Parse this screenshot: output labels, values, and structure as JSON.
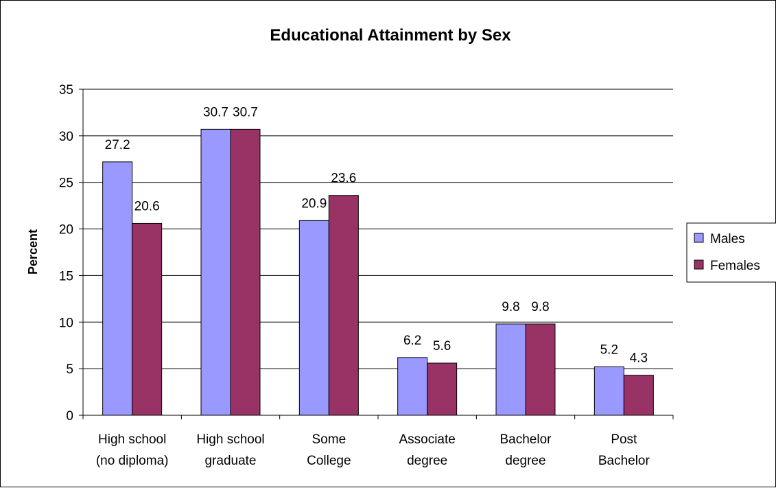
{
  "chart_data": {
    "type": "bar",
    "title": "Educational Attainment by Sex",
    "xlabel": "",
    "ylabel": "Percent",
    "ylim": [
      0,
      35
    ],
    "yticks": [
      "0",
      "5",
      "10",
      "15",
      "20",
      "25",
      "30",
      "35"
    ],
    "grid": true,
    "legend_position": "right",
    "categories": [
      [
        "High school",
        "(no diploma)"
      ],
      [
        "High school",
        "graduate"
      ],
      [
        "Some",
        "College"
      ],
      [
        "Associate",
        "degree"
      ],
      [
        "Bachelor",
        "degree"
      ],
      [
        "Post",
        "Bachelor"
      ]
    ],
    "series": [
      {
        "name": "Males",
        "color": "#9999ff",
        "values": [
          27.2,
          30.7,
          20.9,
          6.2,
          9.8,
          5.2
        ]
      },
      {
        "name": "Females",
        "color": "#993366",
        "values": [
          20.6,
          30.7,
          23.6,
          5.6,
          9.8,
          4.3
        ]
      }
    ]
  }
}
